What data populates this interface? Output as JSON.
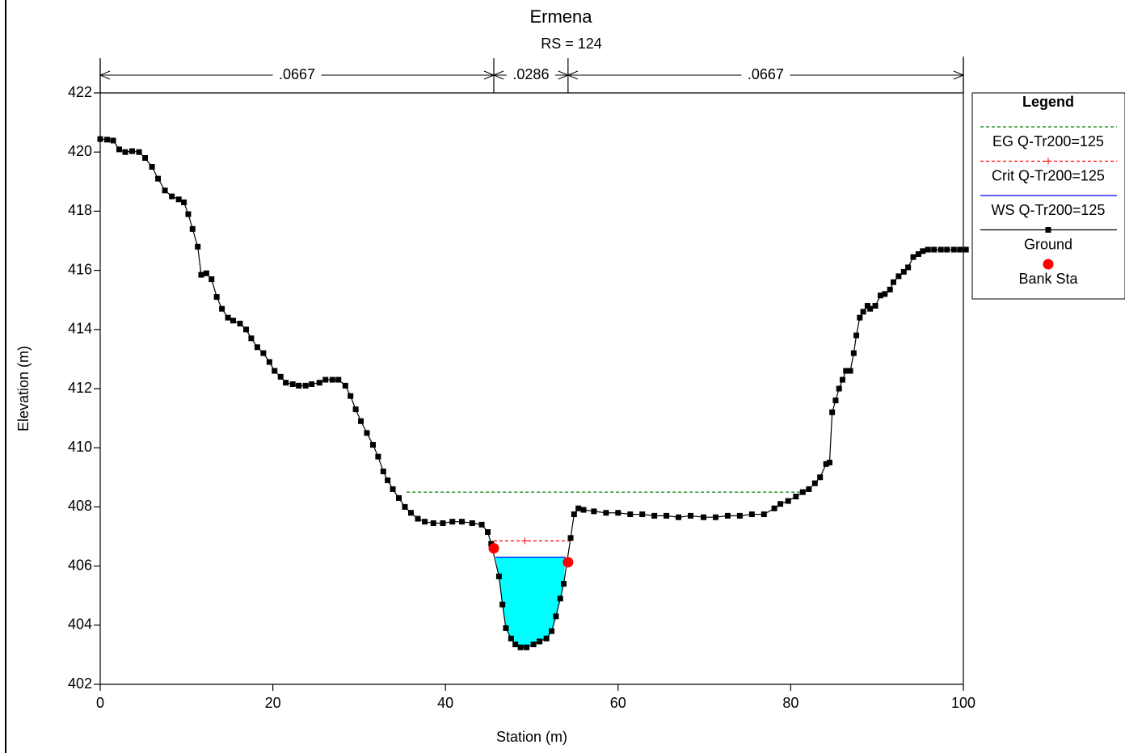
{
  "chart_data": {
    "type": "line",
    "title": "Ermena",
    "subtitle": "RS = 124",
    "x_label": "Station (m)",
    "y_label": "Elevation (m)",
    "xlim": [
      0,
      100
    ],
    "ylim": [
      402,
      422
    ],
    "xticks": [
      0,
      20,
      40,
      60,
      80,
      100
    ],
    "yticks": [
      402,
      404,
      406,
      408,
      410,
      412,
      414,
      416,
      418,
      420,
      422
    ],
    "legend_title": "Legend",
    "water_fill": "#00ffff",
    "mannings_n": {
      "stations": [
        0,
        45.6,
        54.2,
        100
      ],
      "labels": [
        ".0667",
        ".0286",
        ".0667"
      ]
    },
    "series": [
      {
        "name": "EG Q-Tr200=125",
        "color": "#008000",
        "line": "dashed",
        "marker": "none",
        "x": [
          35.5,
          81.6
        ],
        "values": [
          408.5,
          408.5
        ]
      },
      {
        "name": "Crit Q-Tr200=125",
        "color": "#ff0000",
        "line": "dashed",
        "marker": "plus",
        "x": [
          45.6,
          49.2,
          54.4
        ],
        "values": [
          406.85,
          406.85,
          406.85
        ]
      },
      {
        "name": "WS Q-Tr200=125",
        "color": "#0000ff",
        "line": "solid",
        "marker": "none",
        "fill": true,
        "x": [
          45.8,
          53.9
        ],
        "values": [
          406.3,
          406.3
        ]
      },
      {
        "name": "Ground",
        "color": "#000000",
        "line": "solid",
        "marker": "square",
        "x": [
          0,
          0.8,
          1.5,
          2.2,
          2.9,
          3.7,
          4.5,
          5.2,
          6.0,
          6.7,
          7.5,
          8.3,
          9.1,
          9.7,
          10.2,
          10.7,
          11.3,
          11.7,
          12.3,
          12.9,
          13.5,
          14.1,
          14.8,
          15.4,
          16.2,
          16.9,
          17.5,
          18.2,
          18.9,
          19.6,
          20.2,
          20.9,
          21.5,
          22.3,
          23.0,
          23.8,
          24.5,
          25.4,
          26.1,
          26.9,
          27.6,
          28.4,
          29.0,
          29.6,
          30.2,
          30.9,
          31.6,
          32.2,
          32.8,
          33.3,
          33.9,
          34.6,
          35.3,
          36.0,
          36.8,
          37.6,
          38.6,
          39.7,
          40.8,
          41.9,
          43.1,
          44.2,
          44.9,
          45.3,
          46.2,
          46.6,
          47.0,
          47.6,
          48.1,
          48.7,
          49.4,
          50.2,
          50.9,
          51.7,
          52.3,
          52.8,
          53.3,
          53.7,
          54.5,
          54.9,
          55.4,
          56.0,
          57.2,
          58.6,
          60.0,
          61.4,
          62.8,
          64.2,
          65.6,
          67.0,
          68.4,
          69.9,
          71.3,
          72.7,
          74.1,
          75.5,
          76.9,
          78.1,
          78.8,
          79.7,
          80.6,
          81.4,
          82.1,
          82.8,
          83.4,
          84.1,
          84.5,
          84.8,
          85.2,
          85.6,
          86.0,
          86.4,
          86.9,
          87.3,
          87.6,
          88.0,
          88.4,
          88.9,
          89.2,
          89.8,
          90.4,
          90.9,
          91.5,
          91.9,
          92.5,
          93.1,
          93.6,
          94.2,
          94.8,
          95.3,
          95.9,
          96.6,
          97.4,
          98.1,
          98.9,
          99.6,
          100.3
        ],
        "values": [
          420.44,
          420.42,
          420.39,
          420.09,
          420.0,
          420.03,
          420.0,
          419.8,
          419.5,
          419.1,
          418.7,
          418.5,
          418.4,
          418.3,
          417.9,
          417.4,
          416.8,
          415.85,
          415.9,
          415.7,
          415.1,
          414.7,
          414.4,
          414.3,
          414.2,
          414.0,
          413.7,
          413.4,
          413.2,
          412.9,
          412.6,
          412.4,
          412.2,
          412.15,
          412.1,
          412.1,
          412.15,
          412.2,
          412.3,
          412.3,
          412.3,
          412.1,
          411.75,
          411.3,
          410.9,
          410.5,
          410.1,
          409.7,
          409.2,
          408.9,
          408.6,
          408.3,
          408.0,
          407.8,
          407.6,
          407.5,
          407.45,
          407.45,
          407.5,
          407.5,
          407.45,
          407.4,
          407.15,
          406.75,
          405.65,
          404.7,
          403.9,
          403.55,
          403.35,
          403.25,
          403.25,
          403.35,
          403.45,
          403.55,
          403.8,
          404.3,
          404.9,
          405.4,
          406.95,
          407.75,
          407.95,
          407.9,
          407.85,
          407.8,
          407.8,
          407.75,
          407.75,
          407.7,
          407.7,
          407.65,
          407.7,
          407.65,
          407.65,
          407.7,
          407.7,
          407.75,
          407.75,
          407.95,
          408.1,
          408.2,
          408.35,
          408.5,
          408.6,
          408.8,
          409.0,
          409.45,
          409.5,
          411.2,
          411.6,
          412.0,
          412.3,
          412.6,
          412.6,
          413.2,
          413.8,
          414.4,
          414.6,
          414.8,
          414.7,
          414.8,
          415.15,
          415.2,
          415.35,
          415.6,
          415.8,
          415.95,
          416.1,
          416.45,
          416.55,
          416.65,
          416.7,
          416.7,
          416.7,
          416.7,
          416.7,
          416.7,
          416.7
        ]
      },
      {
        "name": "Bank Sta",
        "color": "#ff0000",
        "line": "none",
        "marker": "circle",
        "x": [
          45.6,
          54.2
        ],
        "values": [
          406.6,
          406.13
        ]
      }
    ]
  }
}
